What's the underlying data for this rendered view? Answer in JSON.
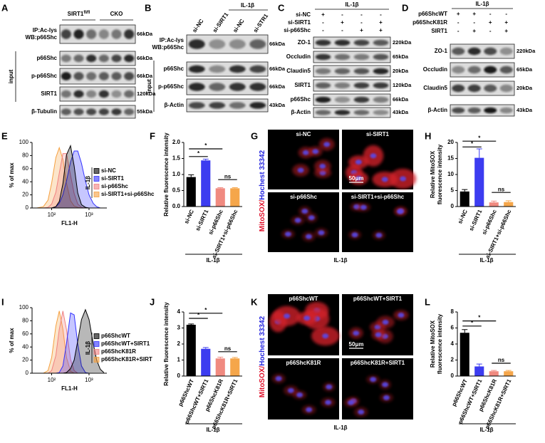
{
  "panel_labels": [
    "A",
    "B",
    "C",
    "D",
    "E",
    "F",
    "G",
    "H",
    "I",
    "J",
    "K",
    "L"
  ],
  "blot_a": {
    "groups": [
      {
        "name": "SIRT1",
        "sup": "fl/fl"
      },
      {
        "name": "CKO"
      }
    ],
    "input": "input",
    "rows": [
      {
        "label": [
          "IP:Ac-lys",
          "WB:p66Shc"
        ],
        "size": "66kDa"
      },
      {
        "label": [
          "p66Shc"
        ],
        "size": "66kDa"
      },
      {
        "label": [
          "p-p66Shc"
        ],
        "size": "66kDa"
      },
      {
        "label": [
          "SIRT1"
        ],
        "size": "120kDa"
      },
      {
        "label": [
          "β-Tubulin"
        ],
        "size": "55kDa"
      }
    ]
  },
  "blot_b": {
    "treatment": "IL-1β",
    "lanes": [
      "si-NC",
      "si-SIRT1",
      "si-NC",
      "si-STR1"
    ],
    "input": "input",
    "rows": [
      {
        "label": [
          "IP:Ac-lys",
          "WB:p66Shc"
        ],
        "size": "66kDa"
      },
      {
        "label": [
          "p66Shc"
        ],
        "size": "66kDa"
      },
      {
        "label": [
          "p-p66Shc"
        ],
        "size": "66kDa"
      },
      {
        "label": [
          "β-Actin"
        ],
        "size": "43kDa"
      }
    ]
  },
  "blot_c": {
    "treatment": "IL-1β",
    "conditions": [
      {
        "name": "si-NC",
        "signs": [
          "+",
          "-",
          "-",
          "-"
        ]
      },
      {
        "name": "si-SIRT1",
        "signs": [
          "-",
          "+",
          "-",
          "+"
        ]
      },
      {
        "name": "si-p66Shc",
        "signs": [
          "-",
          "-",
          "+",
          "+"
        ]
      }
    ],
    "rows": [
      {
        "label": [
          "ZO-1"
        ],
        "size": "220kDa"
      },
      {
        "label": [
          "Occludin"
        ],
        "size": "65kDa"
      },
      {
        "label": [
          "Claudin5"
        ],
        "size": "20kDa"
      },
      {
        "label": [
          "SIRT1"
        ],
        "size": "120kDa"
      },
      {
        "label": [
          "p66Shc"
        ],
        "size": "66kDa"
      },
      {
        "label": [
          "β-Actin"
        ],
        "size": "43kDa"
      }
    ]
  },
  "blot_d": {
    "treatment": "IL-1β",
    "conditions": [
      {
        "name": "p66ShcWT",
        "signs": [
          "+",
          "+",
          "-",
          "-"
        ]
      },
      {
        "name": "p66ShcK81R",
        "signs": [
          "-",
          "-",
          "+",
          "+"
        ]
      },
      {
        "name": "SIRT1",
        "signs": [
          "-",
          "+",
          "-",
          "+"
        ]
      }
    ],
    "rows": [
      {
        "label": [
          "ZO-1"
        ],
        "size": "220kDa"
      },
      {
        "label": [
          "Occludin"
        ],
        "size": "65kDa"
      },
      {
        "label": [
          "Claudin5"
        ],
        "size": "20kDa"
      },
      {
        "label": [
          "β-Actin"
        ],
        "size": "43kDa"
      }
    ]
  },
  "images": [
    {
      "tiles": [
        "si-NC",
        "si-SIRT1",
        "si-p66Shc",
        "si-SIRT1+si-p66Shc"
      ],
      "scale_bar": "50μm",
      "stain": [
        "MitoSOX/",
        "Hochest 33342"
      ],
      "treatment": "IL-1β"
    },
    {
      "tiles": [
        "p66ShcWT",
        "p66ShcWT+SIRT1",
        "p66ShcK81R",
        "p66ShcK81R+SIRT1"
      ],
      "scale_bar": "50μm",
      "stain": [
        "MitoSOX/",
        "Hochest 33342"
      ],
      "treatment": "IL-1β"
    }
  ],
  "chart_data": [
    {
      "type": "area",
      "ylabel": "% of max",
      "xlabel": "FL1-H",
      "xlog": true,
      "xlim": [
        30,
        3000
      ],
      "xticks": [
        {
          "value": 100,
          "label": "10²"
        },
        {
          "value": 1000,
          "label": "10³"
        }
      ],
      "ylim": [
        0,
        100
      ],
      "yticks": [
        0,
        20,
        40,
        60,
        80,
        100
      ],
      "legend_title": "IL-1β",
      "x": [
        40,
        60,
        80,
        100,
        130,
        160,
        200,
        250,
        320,
        400,
        500,
        630,
        800,
        1000,
        1300,
        1600,
        2000,
        2500
      ],
      "series": [
        {
          "name": "si-NC",
          "color": "#000000",
          "values": [
            0,
            0,
            0,
            0,
            2,
            10,
            37,
            81,
            95,
            64,
            23,
            5,
            1,
            0,
            0,
            0,
            0,
            0
          ]
        },
        {
          "name": "si-SIRT1",
          "color": "#3333ff",
          "values": [
            0,
            0,
            0,
            0,
            2,
            7,
            20,
            41,
            70,
            87,
            87,
            68,
            41,
            20,
            7,
            2,
            0,
            0
          ]
        },
        {
          "name": "si-p66Shc",
          "color": "#f08080",
          "values": [
            0,
            0,
            1,
            6,
            24,
            53,
            83,
            83,
            50,
            22,
            6,
            1,
            0,
            0,
            0,
            0,
            0,
            0
          ]
        },
        {
          "name": "si-SIRT1+si-p66Shc",
          "color": "#f5a040",
          "values": [
            0,
            2,
            12,
            38,
            77,
            92,
            74,
            38,
            11,
            3,
            1,
            0,
            0,
            0,
            0,
            0,
            0,
            0
          ]
        }
      ]
    },
    {
      "type": "bar",
      "ylabel": [
        "Relative fluorescence intensity"
      ],
      "categories": [
        "si-NC",
        "si-SIRT1",
        "si-p66Shc",
        "si-SIRT1+si-p66Shc"
      ],
      "values": [
        0.92,
        1.44,
        0.57,
        0.57
      ],
      "errors": [
        0.07,
        0.04,
        0.02,
        0.02
      ],
      "colors": [
        "#000000",
        "#3c3cf0",
        "#f08a80",
        "#f5a64a"
      ],
      "ylim": [
        0,
        2
      ],
      "yticks": [
        {
          "value": 0,
          "label": "0.0"
        },
        {
          "value": 0.5,
          "label": "0.5"
        },
        {
          "value": 1,
          "label": "1.0"
        },
        {
          "value": 1.5,
          "label": "1.5"
        },
        {
          "value": 2,
          "label": "2.0"
        }
      ],
      "group_label": "IL-1β",
      "annotations": [
        "*",
        "*",
        "ns"
      ]
    },
    {
      "type": "bar",
      "ylabel": [
        "Relative MitoSOX",
        "fluorescence intensity"
      ],
      "categories": [
        "si-NC",
        "si-SIRT1",
        "si-p66Shc",
        "si-SIRT1+si-p66Shc"
      ],
      "values": [
        4.7,
        15.2,
        1.3,
        1.4
      ],
      "errors": [
        0.6,
        2.8,
        0.4,
        0.4
      ],
      "colors": [
        "#000000",
        "#3c3cf0",
        "#f08a80",
        "#f5a64a"
      ],
      "ylim": [
        0,
        20
      ],
      "yticks": [
        0,
        5,
        10,
        15,
        20
      ],
      "group_label": "IL-1β",
      "annotations": [
        "*",
        "*",
        "ns"
      ]
    },
    {
      "type": "area",
      "ylabel": "% of max",
      "xlabel": "FL1-H",
      "xlog": true,
      "xlim": [
        30,
        3000
      ],
      "xticks": [
        {
          "value": 100,
          "label": "10²"
        },
        {
          "value": 1000,
          "label": "10³"
        }
      ],
      "ylim": [
        0,
        100
      ],
      "yticks": [
        0,
        20,
        40,
        60,
        80,
        100
      ],
      "legend_title": "IL-1β",
      "x": [
        40,
        60,
        80,
        100,
        130,
        160,
        200,
        250,
        320,
        400,
        500,
        630,
        800,
        1000,
        1300,
        1600,
        2000,
        2500
      ],
      "series": [
        {
          "name": "p66ShcWT",
          "color": "#000000",
          "values": [
            0,
            0,
            0,
            0,
            0,
            0,
            0,
            1,
            7,
            20,
            49,
            82,
            97,
            82,
            45,
            20,
            6,
            1
          ]
        },
        {
          "name": "p66ShcWT+SIRT1",
          "color": "#3333ff",
          "values": [
            0,
            0,
            0,
            0,
            0,
            1,
            11,
            45,
            92,
            89,
            45,
            11,
            1,
            0,
            0,
            0,
            0,
            0
          ]
        },
        {
          "name": "p66ShcK81R",
          "color": "#f08080",
          "values": [
            0,
            0,
            0,
            4,
            27,
            67,
            95,
            67,
            21,
            4,
            0,
            0,
            0,
            0,
            0,
            0,
            0,
            0
          ]
        },
        {
          "name": "p66ShcK81R+SIRT",
          "color": "#f5a040",
          "values": [
            0,
            0,
            4,
            24,
            72,
            95,
            67,
            24,
            3,
            0,
            0,
            0,
            0,
            0,
            0,
            0,
            0,
            0
          ]
        }
      ]
    },
    {
      "type": "bar",
      "ylabel": [
        "Relative fluorescence intensity"
      ],
      "categories": [
        "p66ShcWT",
        "p66ShcWT+SIRT1",
        "p66ShcK81R",
        "p66ShcK81R+SIRT1"
      ],
      "values": [
        3.2,
        1.7,
        1.1,
        1.1
      ],
      "errors": [
        0.05,
        0.08,
        0.08,
        0.06
      ],
      "colors": [
        "#000000",
        "#3c3cf0",
        "#f08a80",
        "#f5a64a"
      ],
      "ylim": [
        0,
        4
      ],
      "yticks": [
        0,
        1,
        2,
        3,
        4
      ],
      "group_label": "IL-1β",
      "annotations": [
        "*",
        "*",
        "ns"
      ]
    },
    {
      "type": "bar",
      "ylabel": [
        "Relative MitoSOX",
        "fluorescence intensity"
      ],
      "categories": [
        "p66ShcWT",
        "p66ShcWT+SIRT1",
        "p66ShcK81R",
        "p66ShcK81R+SIRT1"
      ],
      "values": [
        5.4,
        1.2,
        0.6,
        0.6
      ],
      "errors": [
        0.4,
        0.3,
        0.1,
        0.1
      ],
      "colors": [
        "#000000",
        "#3c3cf0",
        "#f08a80",
        "#f5a64a"
      ],
      "ylim": [
        0,
        8
      ],
      "yticks": [
        0,
        2,
        4,
        6,
        8
      ],
      "group_label": "IL-1β",
      "annotations": [
        "*",
        "*",
        "ns"
      ]
    }
  ]
}
